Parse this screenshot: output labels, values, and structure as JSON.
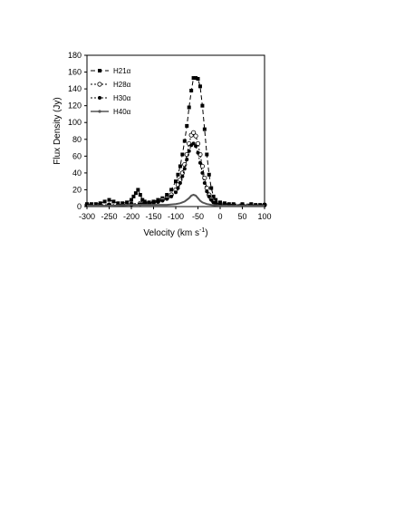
{
  "chart_data": {
    "type": "line",
    "xlabel": "Velocity (km s",
    "xlabel_sup": "-1",
    "xlabel_end": ")",
    "ylabel": "Flux Density (Jy)",
    "xlim": [
      -300,
      100
    ],
    "ylim": [
      0,
      180
    ],
    "x_ticks": [
      "-300",
      "-250",
      "-200",
      "-150",
      "-100",
      "-50",
      "0",
      "50",
      "100"
    ],
    "y_ticks": [
      "0",
      "20",
      "40",
      "60",
      "80",
      "100",
      "120",
      "140",
      "160",
      "180"
    ],
    "grid": false,
    "legend_position": "top-left",
    "series": [
      {
        "name": "H21α",
        "color": "#000000",
        "dash": "5,3",
        "marker": "square",
        "points": [
          [
            -300,
            3
          ],
          [
            -290,
            3
          ],
          [
            -280,
            3
          ],
          [
            -270,
            4
          ],
          [
            -260,
            6
          ],
          [
            -250,
            8
          ],
          [
            -240,
            6
          ],
          [
            -230,
            4
          ],
          [
            -220,
            4
          ],
          [
            -210,
            5
          ],
          [
            -200,
            8
          ],
          [
            -195,
            12
          ],
          [
            -190,
            16
          ],
          [
            -185,
            20
          ],
          [
            -180,
            14
          ],
          [
            -175,
            8
          ],
          [
            -170,
            6
          ],
          [
            -160,
            5
          ],
          [
            -150,
            6
          ],
          [
            -140,
            8
          ],
          [
            -130,
            10
          ],
          [
            -120,
            14
          ],
          [
            -110,
            20
          ],
          [
            -100,
            30
          ],
          [
            -95,
            38
          ],
          [
            -90,
            48
          ],
          [
            -85,
            62
          ],
          [
            -80,
            78
          ],
          [
            -75,
            96
          ],
          [
            -70,
            118
          ],
          [
            -65,
            138
          ],
          [
            -60,
            153
          ],
          [
            -55,
            153
          ],
          [
            -50,
            152
          ],
          [
            -45,
            143
          ],
          [
            -40,
            120
          ],
          [
            -35,
            92
          ],
          [
            -30,
            62
          ],
          [
            -25,
            38
          ],
          [
            -20,
            22
          ],
          [
            -15,
            12
          ],
          [
            -10,
            8
          ],
          [
            0,
            5
          ],
          [
            10,
            4
          ],
          [
            20,
            3
          ],
          [
            30,
            3
          ],
          [
            50,
            3
          ],
          [
            70,
            3
          ],
          [
            80,
            2
          ],
          [
            90,
            2
          ],
          [
            100,
            2
          ]
        ]
      },
      {
        "name": "H28α",
        "color": "#000000",
        "dash": "2,2",
        "marker": "open-circle",
        "points": [
          [
            -300,
            2
          ],
          [
            -250,
            2
          ],
          [
            -200,
            3
          ],
          [
            -180,
            4
          ],
          [
            -170,
            4
          ],
          [
            -160,
            4
          ],
          [
            -150,
            5
          ],
          [
            -140,
            6
          ],
          [
            -130,
            8
          ],
          [
            -120,
            10
          ],
          [
            -110,
            14
          ],
          [
            -100,
            20
          ],
          [
            -95,
            26
          ],
          [
            -90,
            32
          ],
          [
            -85,
            40
          ],
          [
            -80,
            50
          ],
          [
            -75,
            62
          ],
          [
            -70,
            75
          ],
          [
            -65,
            85
          ],
          [
            -60,
            88
          ],
          [
            -55,
            84
          ],
          [
            -50,
            75
          ],
          [
            -45,
            62
          ],
          [
            -40,
            48
          ],
          [
            -35,
            34
          ],
          [
            -30,
            22
          ],
          [
            -25,
            14
          ],
          [
            -20,
            9
          ],
          [
            -15,
            6
          ],
          [
            -10,
            4
          ],
          [
            0,
            3
          ],
          [
            50,
            2
          ],
          [
            100,
            2
          ]
        ]
      },
      {
        "name": "H30α",
        "color": "#000000",
        "dash": "2,2",
        "marker": "filled-circle",
        "points": [
          [
            -300,
            2
          ],
          [
            -250,
            2
          ],
          [
            -200,
            3
          ],
          [
            -180,
            3
          ],
          [
            -170,
            4
          ],
          [
            -160,
            4
          ],
          [
            -150,
            5
          ],
          [
            -140,
            6
          ],
          [
            -130,
            7
          ],
          [
            -120,
            9
          ],
          [
            -110,
            12
          ],
          [
            -100,
            17
          ],
          [
            -95,
            22
          ],
          [
            -90,
            28
          ],
          [
            -85,
            36
          ],
          [
            -80,
            45
          ],
          [
            -75,
            56
          ],
          [
            -70,
            66
          ],
          [
            -65,
            73
          ],
          [
            -60,
            75
          ],
          [
            -55,
            72
          ],
          [
            -50,
            64
          ],
          [
            -45,
            52
          ],
          [
            -40,
            40
          ],
          [
            -35,
            28
          ],
          [
            -30,
            18
          ],
          [
            -25,
            12
          ],
          [
            -20,
            8
          ],
          [
            -15,
            5
          ],
          [
            -10,
            4
          ],
          [
            0,
            3
          ],
          [
            50,
            2
          ],
          [
            100,
            2
          ]
        ]
      },
      {
        "name": "H40α",
        "color": "#555555",
        "dash": "",
        "marker": "none",
        "points": [
          [
            -300,
            1
          ],
          [
            -250,
            1
          ],
          [
            -200,
            2
          ],
          [
            -180,
            2
          ],
          [
            -150,
            2
          ],
          [
            -120,
            2
          ],
          [
            -100,
            3
          ],
          [
            -90,
            4
          ],
          [
            -80,
            6
          ],
          [
            -70,
            10
          ],
          [
            -65,
            13
          ],
          [
            -60,
            14
          ],
          [
            -55,
            13
          ],
          [
            -50,
            10
          ],
          [
            -45,
            7
          ],
          [
            -40,
            5
          ],
          [
            -30,
            3
          ],
          [
            -20,
            2
          ],
          [
            0,
            1
          ],
          [
            50,
            1
          ],
          [
            100,
            1
          ]
        ]
      }
    ]
  }
}
